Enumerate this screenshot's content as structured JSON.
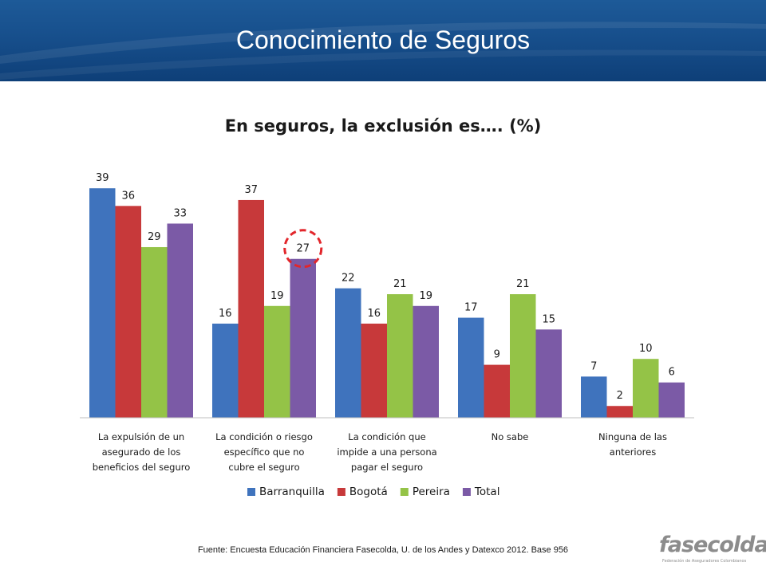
{
  "slide": {
    "title": "Conocimiento de Seguros",
    "source": "Fuente: Encuesta Educación Financiera Fasecolda, U. de los Andes y Datexco 2012. Base 956"
  },
  "logo": {
    "word": "fasecolda",
    "tagline": "Federación de Aseguradores Colombianos"
  },
  "colors": {
    "banner": "#174f8c",
    "Barranquilla": "#3f73bd",
    "Bogotá": "#c7393a",
    "Pereira": "#94c347",
    "Total": "#7b5aa6",
    "highlight_circle": "#e2262b"
  },
  "chart_data": {
    "type": "bar",
    "title": "En seguros, la exclusión es…. (%)",
    "xlabel": "",
    "ylabel": "",
    "ylim": [
      0,
      40
    ],
    "grid": false,
    "legend_position": "bottom",
    "categories": [
      "La expulsión de un asegurado de los beneficios del seguro",
      "La condición o riesgo específico que no cubre el seguro",
      "La condición que impide a una persona pagar el seguro",
      "No sabe",
      "Ninguna de las anteriores"
    ],
    "category_lines": [
      [
        "La expulsión de un",
        "asegurado de los",
        "beneficios del seguro"
      ],
      [
        "La condición o riesgo",
        "específico que no",
        "cubre el seguro"
      ],
      [
        "La condición que",
        "impide a una persona",
        "pagar el seguro"
      ],
      [
        "No sabe"
      ],
      [
        "Ninguna de las",
        "anteriores"
      ]
    ],
    "series": [
      {
        "name": "Barranquilla",
        "values": [
          39,
          16,
          22,
          17,
          7
        ]
      },
      {
        "name": "Bogotá",
        "values": [
          36,
          37,
          16,
          9,
          2
        ]
      },
      {
        "name": "Pereira",
        "values": [
          29,
          19,
          21,
          21,
          10
        ]
      },
      {
        "name": "Total",
        "values": [
          33,
          27,
          19,
          15,
          6
        ]
      }
    ],
    "highlighted": {
      "series": "Total",
      "category_index": 1,
      "value": 27
    }
  }
}
